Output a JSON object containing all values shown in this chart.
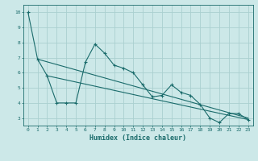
{
  "xlabel": "Humidex (Indice chaleur)",
  "bg_color": "#cce8e8",
  "line_color": "#1a6b6b",
  "grid_color": "#aad0d0",
  "x_ticks": [
    0,
    1,
    2,
    3,
    4,
    5,
    6,
    7,
    8,
    9,
    10,
    11,
    12,
    13,
    14,
    15,
    16,
    17,
    18,
    19,
    20,
    21,
    22,
    23
  ],
  "y_ticks": [
    3,
    4,
    5,
    6,
    7,
    8,
    9,
    10
  ],
  "ylim": [
    2.5,
    10.5
  ],
  "xlim": [
    -0.5,
    23.5
  ],
  "line1_x": [
    0,
    1,
    2,
    3,
    4,
    5,
    6,
    7,
    8,
    9,
    10,
    11,
    12,
    13,
    14,
    15,
    16,
    17,
    18,
    19,
    20,
    21,
    22,
    23
  ],
  "line1_y": [
    10.0,
    6.9,
    5.8,
    4.0,
    4.0,
    4.0,
    6.7,
    7.9,
    7.3,
    6.5,
    6.3,
    6.0,
    5.2,
    4.4,
    4.5,
    5.2,
    4.7,
    4.5,
    3.9,
    3.0,
    2.7,
    3.3,
    3.3,
    2.9
  ],
  "line2_x": [
    1,
    23
  ],
  "line2_y": [
    6.9,
    3.0
  ],
  "line3_x": [
    2,
    23
  ],
  "line3_y": [
    5.8,
    2.9
  ]
}
